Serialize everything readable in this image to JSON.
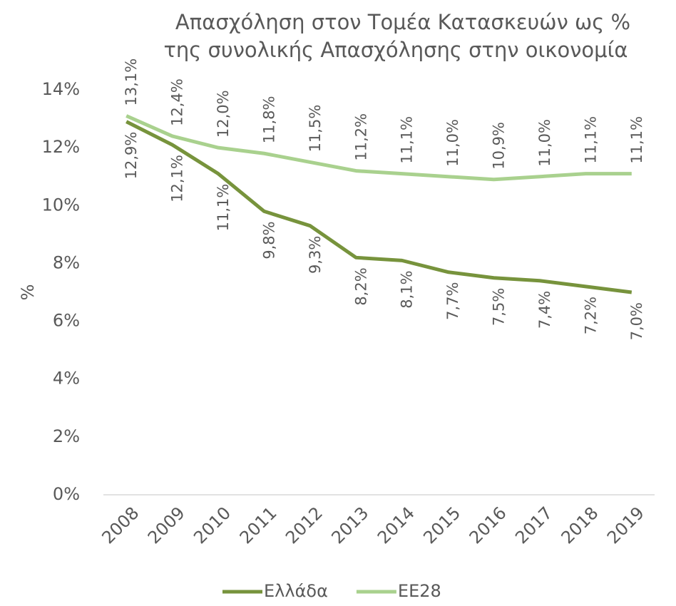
{
  "chart_data": {
    "type": "line",
    "title": [
      "Απασχόληση στον Τομέα Κατασκευών ως %",
      "της συνολικής Απασχόλησης στην οικονομία"
    ],
    "y_label": "%",
    "categories": [
      "2008",
      "2009",
      "2010",
      "2011",
      "2012",
      "2013",
      "2014",
      "2015",
      "2016",
      "2017",
      "2018",
      "2019"
    ],
    "series": [
      {
        "name": "Ελλάδα",
        "color": "#77933c",
        "values": [
          12.9,
          12.1,
          11.1,
          9.8,
          9.3,
          8.2,
          8.1,
          7.7,
          7.5,
          7.4,
          7.2,
          7.0
        ],
        "value_labels": [
          "12,9%",
          "12,1%",
          "11,1%",
          "9,8%",
          "9,3%",
          "8,2%",
          "8,1%",
          "7,7%",
          "7,5%",
          "7,4%",
          "7,2%",
          "7,0%"
        ]
      },
      {
        "name": "ΕΕ28",
        "color": "#a9d18e",
        "values": [
          13.1,
          12.4,
          12.0,
          11.8,
          11.5,
          11.2,
          11.1,
          11.0,
          10.9,
          11.0,
          11.1,
          11.1
        ],
        "value_labels": [
          "13,1%",
          "12,4%",
          "12,0%",
          "11,8%",
          "11,5%",
          "11,2%",
          "11,1%",
          "11,0%",
          "10,9%",
          "11,0%",
          "11,1%",
          "11,1%"
        ]
      }
    ],
    "ylim": [
      0,
      14
    ],
    "yticks": [
      {
        "value": 0,
        "label": "0%"
      },
      {
        "value": 2,
        "label": "2%"
      },
      {
        "value": 4,
        "label": "4%"
      },
      {
        "value": 6,
        "label": "6%"
      },
      {
        "value": 8,
        "label": "8%"
      },
      {
        "value": 10,
        "label": "10%"
      },
      {
        "value": 12,
        "label": "12%"
      },
      {
        "value": 14,
        "label": "14%"
      }
    ],
    "grid": false,
    "legend": "bottom"
  }
}
